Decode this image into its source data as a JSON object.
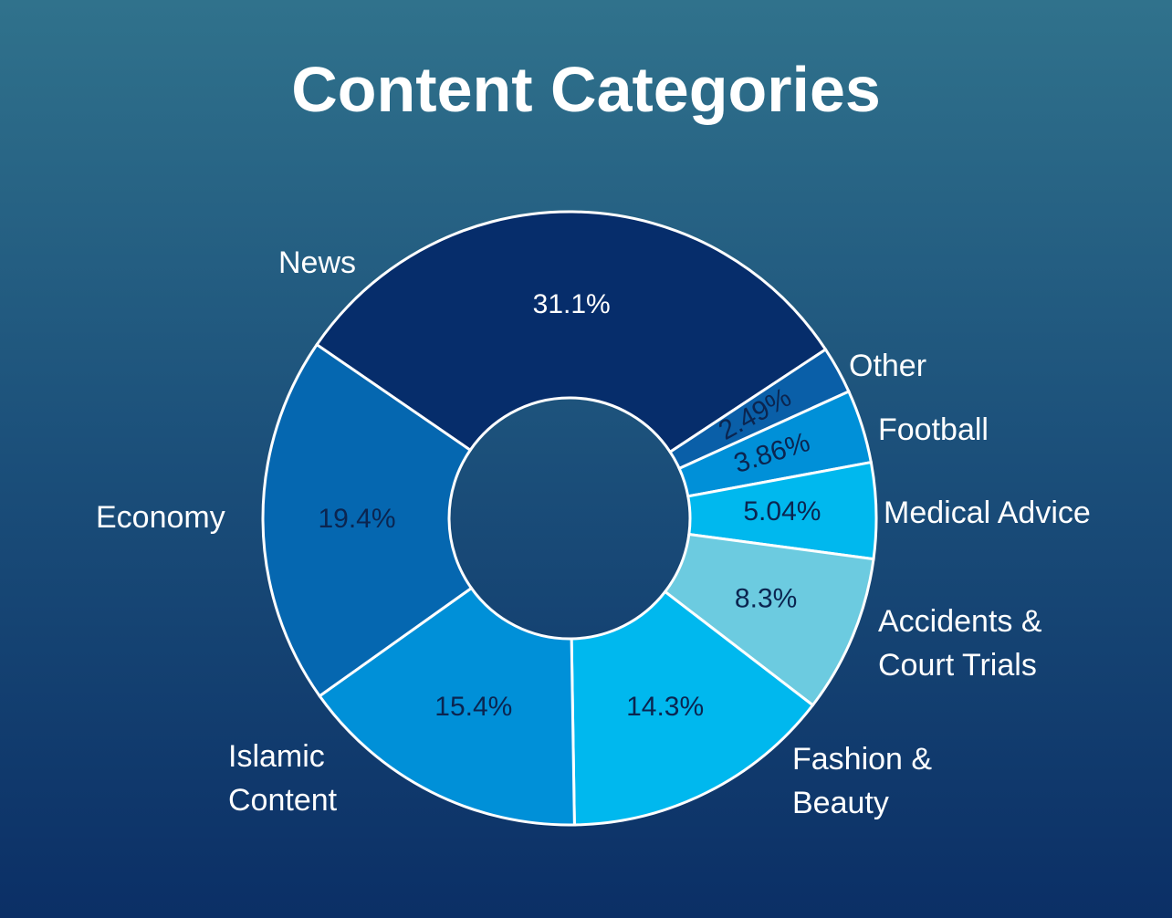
{
  "chart_data": {
    "type": "pie",
    "title": "Content Categories",
    "categories": [
      "News",
      "Other",
      "Football",
      "Medical Advice",
      "Accidents & Court Trials",
      "Fashion & Beauty",
      "Islamic Content",
      "Economy"
    ],
    "values": [
      31.1,
      2.49,
      3.86,
      5.04,
      8.3,
      14.3,
      15.4,
      19.4
    ],
    "value_labels": [
      "31.1%",
      "2.49%",
      "3.86%",
      "5.04%",
      "8.3%",
      "14.3%",
      "15.4%",
      "19.4%"
    ],
    "colors": [
      "#062d6b",
      "#0a5fa8",
      "#0090d8",
      "#00b8ee",
      "#6ccbe0",
      "#00b8ee",
      "#0090d8",
      "#0567b0"
    ]
  }
}
